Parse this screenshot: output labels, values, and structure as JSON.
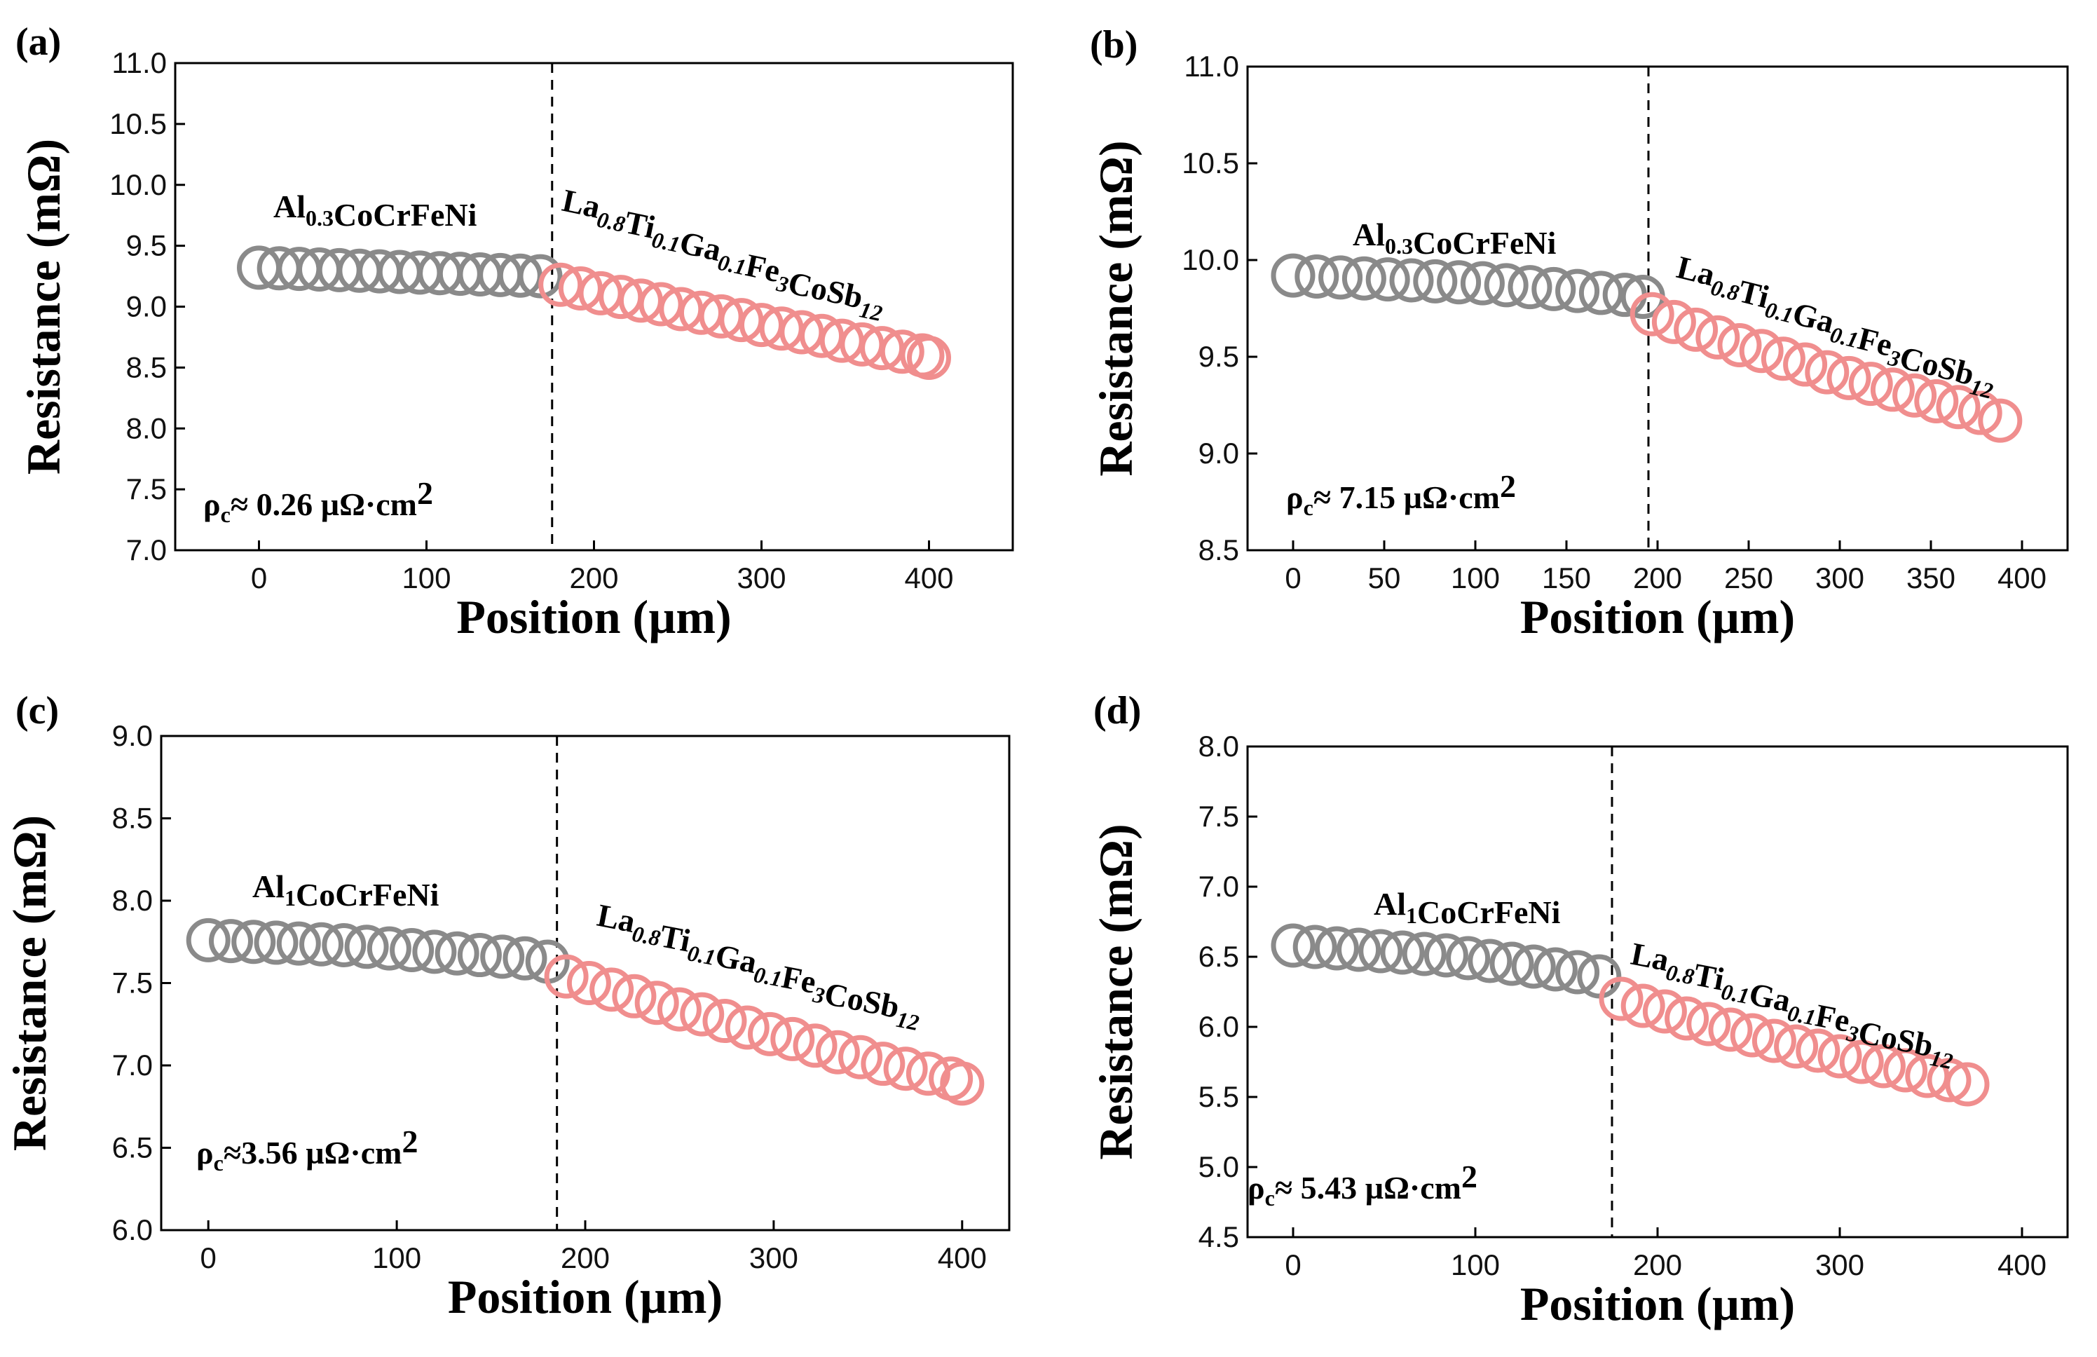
{
  "figure": {
    "panels": [
      "(a)",
      "(b)",
      "(c)",
      "(d)"
    ]
  },
  "chart_data": [
    {
      "label": "(a)",
      "type": "scatter",
      "xlabel": "Position (µm)",
      "ylabel": "Resistance (mΩ)",
      "xlim": [
        -50,
        450
      ],
      "ylim": [
        7.0,
        11.0
      ],
      "xticks": [
        "0",
        "100",
        "200",
        "300",
        "400"
      ],
      "xtick_values": [
        0,
        100,
        200,
        300,
        400
      ],
      "yticks": [
        "7.0",
        "7.5",
        "8.0",
        "8.5",
        "9.0",
        "9.5",
        "10.0",
        "10.5",
        "11.0"
      ],
      "ytick_values": [
        7.0,
        7.5,
        8.0,
        8.5,
        9.0,
        9.5,
        10.0,
        10.5,
        11.0
      ],
      "interface_x": 175,
      "contact_resistivity": "ρc≈ 0.26 µΩ·cm2",
      "series": [
        {
          "name": "Al0.3CoCrFeNi",
          "color": "#8a8a8a",
          "x": [
            0,
            12,
            24,
            36,
            48,
            60,
            72,
            84,
            96,
            108,
            120,
            132,
            144,
            156,
            168
          ],
          "y": [
            9.32,
            9.315,
            9.31,
            9.305,
            9.3,
            9.295,
            9.29,
            9.285,
            9.28,
            9.275,
            9.27,
            9.265,
            9.26,
            9.255,
            9.25
          ]
        },
        {
          "name": "La0.8Ti0.1Ga0.1Fe3CoSb12",
          "color": "#f08e8e",
          "x": [
            180,
            192,
            204,
            216,
            228,
            240,
            252,
            264,
            276,
            288,
            300,
            312,
            324,
            336,
            348,
            360,
            372,
            384,
            396,
            400
          ],
          "y": [
            9.18,
            9.15,
            9.11,
            9.08,
            9.05,
            9.02,
            8.98,
            8.95,
            8.92,
            8.89,
            8.85,
            8.82,
            8.79,
            8.76,
            8.72,
            8.69,
            8.66,
            8.63,
            8.6,
            8.58
          ]
        }
      ]
    },
    {
      "label": "(b)",
      "type": "scatter",
      "xlabel": "Position (µm)",
      "ylabel": "Resistance (mΩ)",
      "xlim": [
        -25,
        425
      ],
      "ylim": [
        8.5,
        11.0
      ],
      "xticks": [
        "0",
        "50",
        "100",
        "150",
        "200",
        "250",
        "300",
        "350",
        "400"
      ],
      "xtick_values": [
        0,
        50,
        100,
        150,
        200,
        250,
        300,
        350,
        400
      ],
      "yticks": [
        "8.5",
        "9.0",
        "9.5",
        "10.0",
        "10.5",
        "11.0"
      ],
      "ytick_values": [
        8.5,
        9.0,
        9.5,
        10.0,
        10.5,
        11.0
      ],
      "interface_x": 195,
      "contact_resistivity": "ρc≈ 7.15 µΩ·cm2",
      "series": [
        {
          "name": "Al0.3CoCrFeNi",
          "color": "#8a8a8a",
          "x": [
            0,
            13,
            26,
            39,
            52,
            65,
            78,
            91,
            104,
            117,
            130,
            143,
            156,
            169,
            182,
            192
          ],
          "y": [
            9.92,
            9.915,
            9.91,
            9.905,
            9.9,
            9.895,
            9.89,
            9.885,
            9.88,
            9.87,
            9.86,
            9.85,
            9.84,
            9.83,
            9.82,
            9.81
          ]
        },
        {
          "name": "La0.8Ti0.1Ga0.1Fe3CoSb12",
          "color": "#f08e8e",
          "x": [
            197,
            209,
            221,
            233,
            245,
            257,
            269,
            281,
            293,
            305,
            317,
            329,
            341,
            353,
            365,
            377,
            388
          ],
          "y": [
            9.72,
            9.68,
            9.64,
            9.6,
            9.56,
            9.53,
            9.49,
            9.46,
            9.42,
            9.39,
            9.36,
            9.33,
            9.3,
            9.27,
            9.24,
            9.21,
            9.17
          ]
        }
      ]
    },
    {
      "label": "(c)",
      "type": "scatter",
      "xlabel": "Position (µm)",
      "ylabel": "Resistance (mΩ)",
      "xlim": [
        -25,
        425
      ],
      "ylim": [
        6.0,
        9.0
      ],
      "xticks": [
        "0",
        "100",
        "200",
        "300",
        "400"
      ],
      "xtick_values": [
        0,
        100,
        200,
        300,
        400
      ],
      "yticks": [
        "6.0",
        "6.5",
        "7.0",
        "7.5",
        "8.0",
        "8.5",
        "9.0"
      ],
      "ytick_values": [
        6.0,
        6.5,
        7.0,
        7.5,
        8.0,
        8.5,
        9.0
      ],
      "interface_x": 185,
      "contact_resistivity": "ρc≈3.56 µΩ·cm2",
      "series": [
        {
          "name": "Al1CoCrFeNi",
          "color": "#8a8a8a",
          "x": [
            0,
            12,
            24,
            36,
            48,
            60,
            72,
            84,
            96,
            108,
            120,
            132,
            144,
            156,
            168,
            180
          ],
          "y": [
            7.76,
            7.755,
            7.75,
            7.745,
            7.74,
            7.735,
            7.73,
            7.72,
            7.71,
            7.7,
            7.69,
            7.68,
            7.67,
            7.66,
            7.65,
            7.63
          ]
        },
        {
          "name": "La0.8Ti0.1Ga0.1Fe3CoSb12",
          "color": "#f08e8e",
          "x": [
            190,
            202,
            214,
            226,
            238,
            250,
            262,
            274,
            286,
            298,
            310,
            322,
            334,
            346,
            358,
            370,
            382,
            394,
            400
          ],
          "y": [
            7.54,
            7.5,
            7.46,
            7.42,
            7.38,
            7.34,
            7.31,
            7.27,
            7.23,
            7.19,
            7.16,
            7.12,
            7.08,
            7.05,
            7.01,
            6.98,
            6.95,
            6.92,
            6.89
          ]
        }
      ]
    },
    {
      "label": "(d)",
      "type": "scatter",
      "xlabel": "Position (µm)",
      "ylabel": "Resistance (mΩ)",
      "xlim": [
        -25,
        425
      ],
      "ylim": [
        4.5,
        8.0
      ],
      "xticks": [
        "0",
        "100",
        "200",
        "300",
        "400"
      ],
      "xtick_values": [
        0,
        100,
        200,
        300,
        400
      ],
      "yticks": [
        "4.5",
        "5.0",
        "5.5",
        "6.0",
        "6.5",
        "7.0",
        "7.5",
        "8.0"
      ],
      "ytick_values": [
        4.5,
        5.0,
        5.5,
        6.0,
        6.5,
        7.0,
        7.5,
        8.0
      ],
      "interface_x": 175,
      "contact_resistivity": "ρc≈ 5.43 µΩ·cm2",
      "series": [
        {
          "name": "Al1CoCrFeNi",
          "color": "#8a8a8a",
          "x": [
            0,
            12,
            24,
            36,
            48,
            60,
            72,
            84,
            96,
            108,
            120,
            132,
            144,
            156,
            168
          ],
          "y": [
            6.58,
            6.57,
            6.56,
            6.55,
            6.54,
            6.53,
            6.52,
            6.51,
            6.49,
            6.47,
            6.45,
            6.43,
            6.41,
            6.39,
            6.36
          ]
        },
        {
          "name": "La0.8Ti0.1Ga0.1Fe3CoSb12",
          "color": "#f08e8e",
          "x": [
            180,
            192,
            204,
            216,
            228,
            240,
            252,
            264,
            276,
            288,
            300,
            312,
            324,
            336,
            348,
            360,
            370
          ],
          "y": [
            6.2,
            6.15,
            6.11,
            6.06,
            6.02,
            5.98,
            5.94,
            5.9,
            5.86,
            5.83,
            5.79,
            5.75,
            5.72,
            5.69,
            5.65,
            5.62,
            5.59
          ]
        }
      ]
    }
  ]
}
